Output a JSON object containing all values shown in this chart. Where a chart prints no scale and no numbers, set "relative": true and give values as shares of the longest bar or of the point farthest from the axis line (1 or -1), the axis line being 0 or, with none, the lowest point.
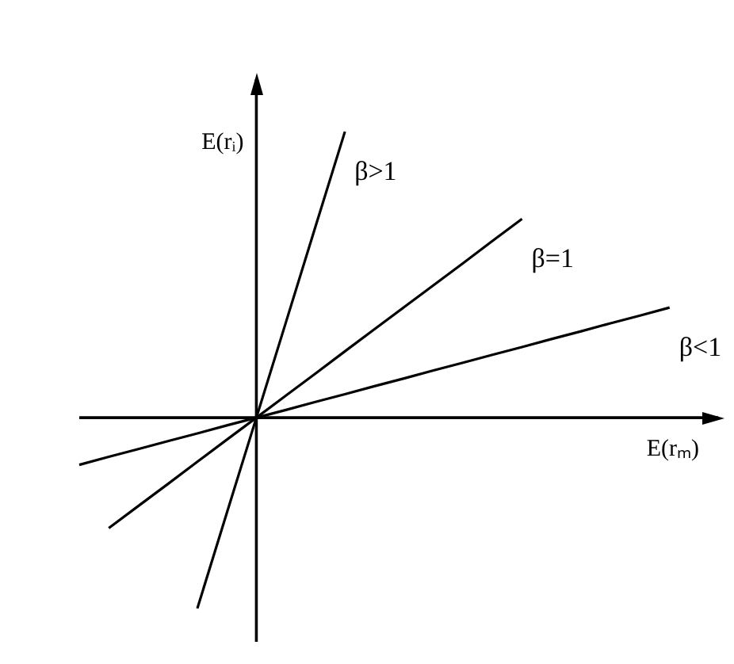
{
  "chart_data": {
    "type": "line",
    "xlabel": "E(rₘ)",
    "ylabel": "E(rᵢ)",
    "relative": true,
    "legend": false,
    "grid": false,
    "line_style": "solid",
    "categories": [
      null,
      null,
      null,
      null,
      null,
      null,
      null,
      null,
      null,
      null,
      null,
      null,
      null,
      null,
      null,
      null,
      null,
      null,
      null,
      null,
      null,
      null
    ],
    "series": [
      {
        "name": "β>1",
        "color": "#000000",
        "values": [
          null,
          null,
          null,
          null,
          -0.667,
          -0.333,
          0,
          0.333,
          0.667,
          1,
          null,
          null,
          null,
          null,
          null,
          null,
          null,
          null,
          null,
          null,
          null,
          null
        ]
      },
      {
        "name": "β=1",
        "color": "#000000",
        "values": [
          null,
          -0.386,
          -0.309,
          -0.232,
          -0.154,
          -0.077,
          0,
          0.077,
          0.154,
          0.232,
          0.309,
          0.386,
          0.463,
          0.54,
          0.618,
          0.695,
          null,
          null,
          null,
          null,
          null,
          null
        ]
      },
      {
        "name": "β<1",
        "color": "#000000",
        "values": [
          -0.165,
          -0.137,
          -0.11,
          -0.082,
          -0.055,
          -0.027,
          0,
          0.027,
          0.055,
          0.082,
          0.11,
          0.137,
          0.165,
          0.192,
          0.22,
          0.247,
          0.275,
          0.302,
          0.33,
          0.357,
          0.385,
          null
        ]
      }
    ]
  }
}
